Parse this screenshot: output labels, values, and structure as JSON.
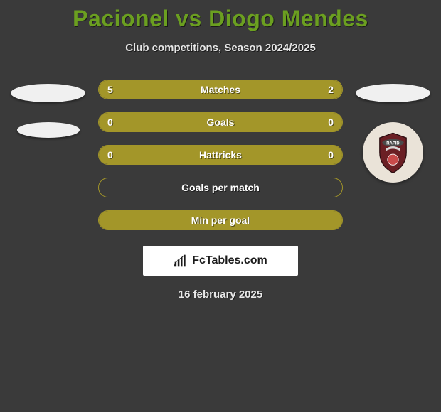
{
  "title": "Pacionel vs Diogo Mendes",
  "subtitle": "Club competitions, Season 2024/2025",
  "date": "16 february 2025",
  "footer_brand": "FcTables.com",
  "colors": {
    "background": "#3a3a3a",
    "title": "#6b9f20",
    "subtitle": "#e8e8e8",
    "bar_fill": "#a39629",
    "bar_border": "#a39629",
    "bar_empty": "transparent",
    "text_on_bar": "#ffffff",
    "ellipse": "#f0f0f0",
    "footer_bg": "#ffffff",
    "footer_text": "#1a1a1a"
  },
  "typography": {
    "title_fontsize": 32,
    "subtitle_fontsize": 15,
    "bar_label_fontsize": 14,
    "date_fontsize": 15
  },
  "left_badges": [
    {
      "type": "ellipse",
      "variant": "large"
    },
    {
      "type": "ellipse",
      "variant": "small"
    }
  ],
  "right_badges": [
    {
      "type": "ellipse",
      "variant": "large"
    },
    {
      "type": "club",
      "name": "RAPID",
      "shield_color": "#6b1f24",
      "banner_color": "#4a4a4a",
      "ring_color": "#eae3d8"
    }
  ],
  "bars": [
    {
      "label": "Matches",
      "left": "5",
      "right": "2",
      "left_pct": 71,
      "right_pct": 29,
      "fill_left": true,
      "fill_right": true
    },
    {
      "label": "Goals",
      "left": "0",
      "right": "0",
      "left_pct": 100,
      "right_pct": 0,
      "fill_left": true,
      "fill_right": false
    },
    {
      "label": "Hattricks",
      "left": "0",
      "right": "0",
      "left_pct": 100,
      "right_pct": 0,
      "fill_left": true,
      "fill_right": false
    },
    {
      "label": "Goals per match",
      "left": "",
      "right": "",
      "left_pct": 0,
      "right_pct": 0,
      "fill_left": false,
      "fill_right": false
    },
    {
      "label": "Min per goal",
      "left": "",
      "right": "",
      "left_pct": 100,
      "right_pct": 0,
      "fill_left": true,
      "fill_right": false
    }
  ]
}
